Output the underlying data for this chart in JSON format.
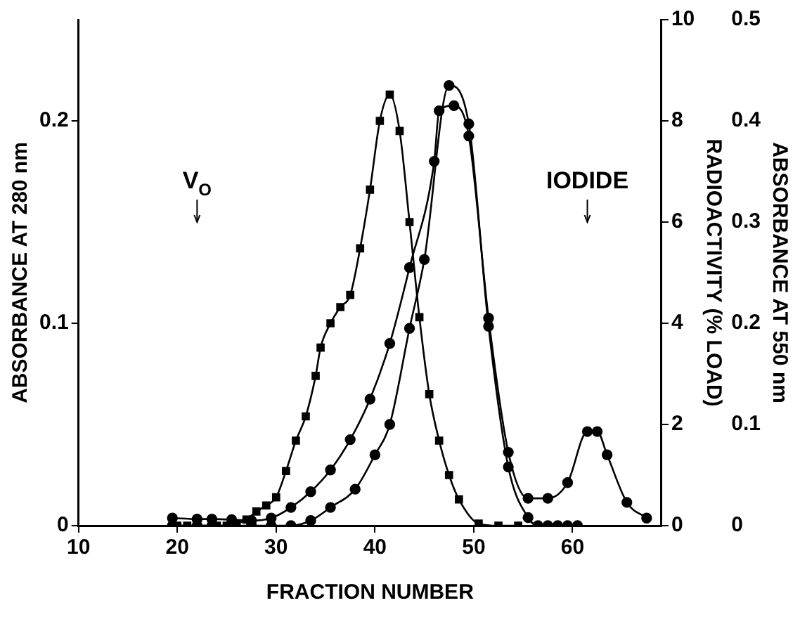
{
  "chart_data": {
    "type": "line",
    "xlabel": "FRACTION NUMBER",
    "ylabel": "ABSORBANCE AT 280 nm",
    "y2label": "RADIOACTIVITY (% LOAD)",
    "y3label": "ABSORBANCE AT 550 nm",
    "xlim": [
      10,
      69
    ],
    "xticks": [
      10,
      20,
      30,
      40,
      50,
      60
    ],
    "ylim": [
      0,
      0.25
    ],
    "yticks": [
      0,
      0.1,
      0.2
    ],
    "y2lim": [
      0,
      10
    ],
    "y2ticks": [
      0,
      2,
      4,
      6,
      8,
      10
    ],
    "y3lim": [
      0,
      0.5
    ],
    "y3ticks": [
      0,
      0.1,
      0.2,
      0.3,
      0.4,
      0.5
    ],
    "grid": false,
    "legend": false,
    "line_style": "solid",
    "annotations": [
      {
        "text": "V$_{O}$",
        "x": 22
      },
      {
        "text": "IODIDE",
        "x": 61.5
      }
    ],
    "series": [
      {
        "color": "#000000",
        "marker": "square",
        "x": [
          20,
          21,
          22,
          24,
          25,
          26,
          27,
          28,
          29,
          30,
          31,
          32,
          33,
          34,
          34.5,
          35.5,
          36.5,
          37.5,
          38.5,
          39.5,
          40.5,
          41.5,
          42.5,
          43.5,
          44.5,
          45.5,
          46.5,
          47.5,
          48.5,
          50.5,
          52.5,
          54.5
        ],
        "values": [
          0,
          0,
          0,
          0,
          0,
          0.001,
          0.003,
          0.007,
          0.01,
          0.014,
          0.027,
          0.042,
          0.054,
          0.074,
          0.088,
          0.1,
          0.108,
          0.114,
          0.137,
          0.166,
          0.2,
          0.213,
          0.195,
          0.15,
          0.103,
          0.065,
          0.042,
          0.025,
          0.013,
          0.001,
          0,
          0
        ]
      },
      {
        "color": "#000000",
        "marker": "circle",
        "axis": "y2",
        "x": [
          19.5,
          22,
          23.5,
          25.5,
          27.5,
          29.5,
          31.5,
          33.5,
          35.5,
          37.5,
          39.5,
          41.5,
          43.5,
          46,
          46.5,
          48,
          49.5,
          51.5,
          53.5,
          55.5,
          57.5,
          59.5,
          61.5,
          62.5,
          63.5,
          65.5,
          67.5
        ],
        "values": [
          0.15,
          0.13,
          0.13,
          0.12,
          0.1,
          0.15,
          0.36,
          0.67,
          1.1,
          1.7,
          2.5,
          3.6,
          5.1,
          7.2,
          8.2,
          8.3,
          7.7,
          4.1,
          1.45,
          0.54,
          0.54,
          0.85,
          1.86,
          1.86,
          1.4,
          0.46,
          0.15
        ]
      },
      {
        "color": "#000000",
        "marker": "circle",
        "axis": "y3",
        "x": [
          19.5,
          22,
          23.5,
          25.5,
          27.5,
          29.5,
          31.5,
          33.5,
          35.5,
          38,
          40,
          41.5,
          43.5,
          45,
          47.5,
          49.5,
          51.5,
          53.5,
          55.5,
          56.5,
          57.5,
          58.5,
          59.5,
          60.5
        ],
        "values": [
          0,
          0,
          0,
          0,
          0,
          0,
          0,
          0.005,
          0.018,
          0.036,
          0.07,
          0.1,
          0.195,
          0.263,
          0.435,
          0.397,
          0.197,
          0.058,
          0.008,
          0,
          0,
          0,
          0,
          0
        ]
      }
    ]
  }
}
